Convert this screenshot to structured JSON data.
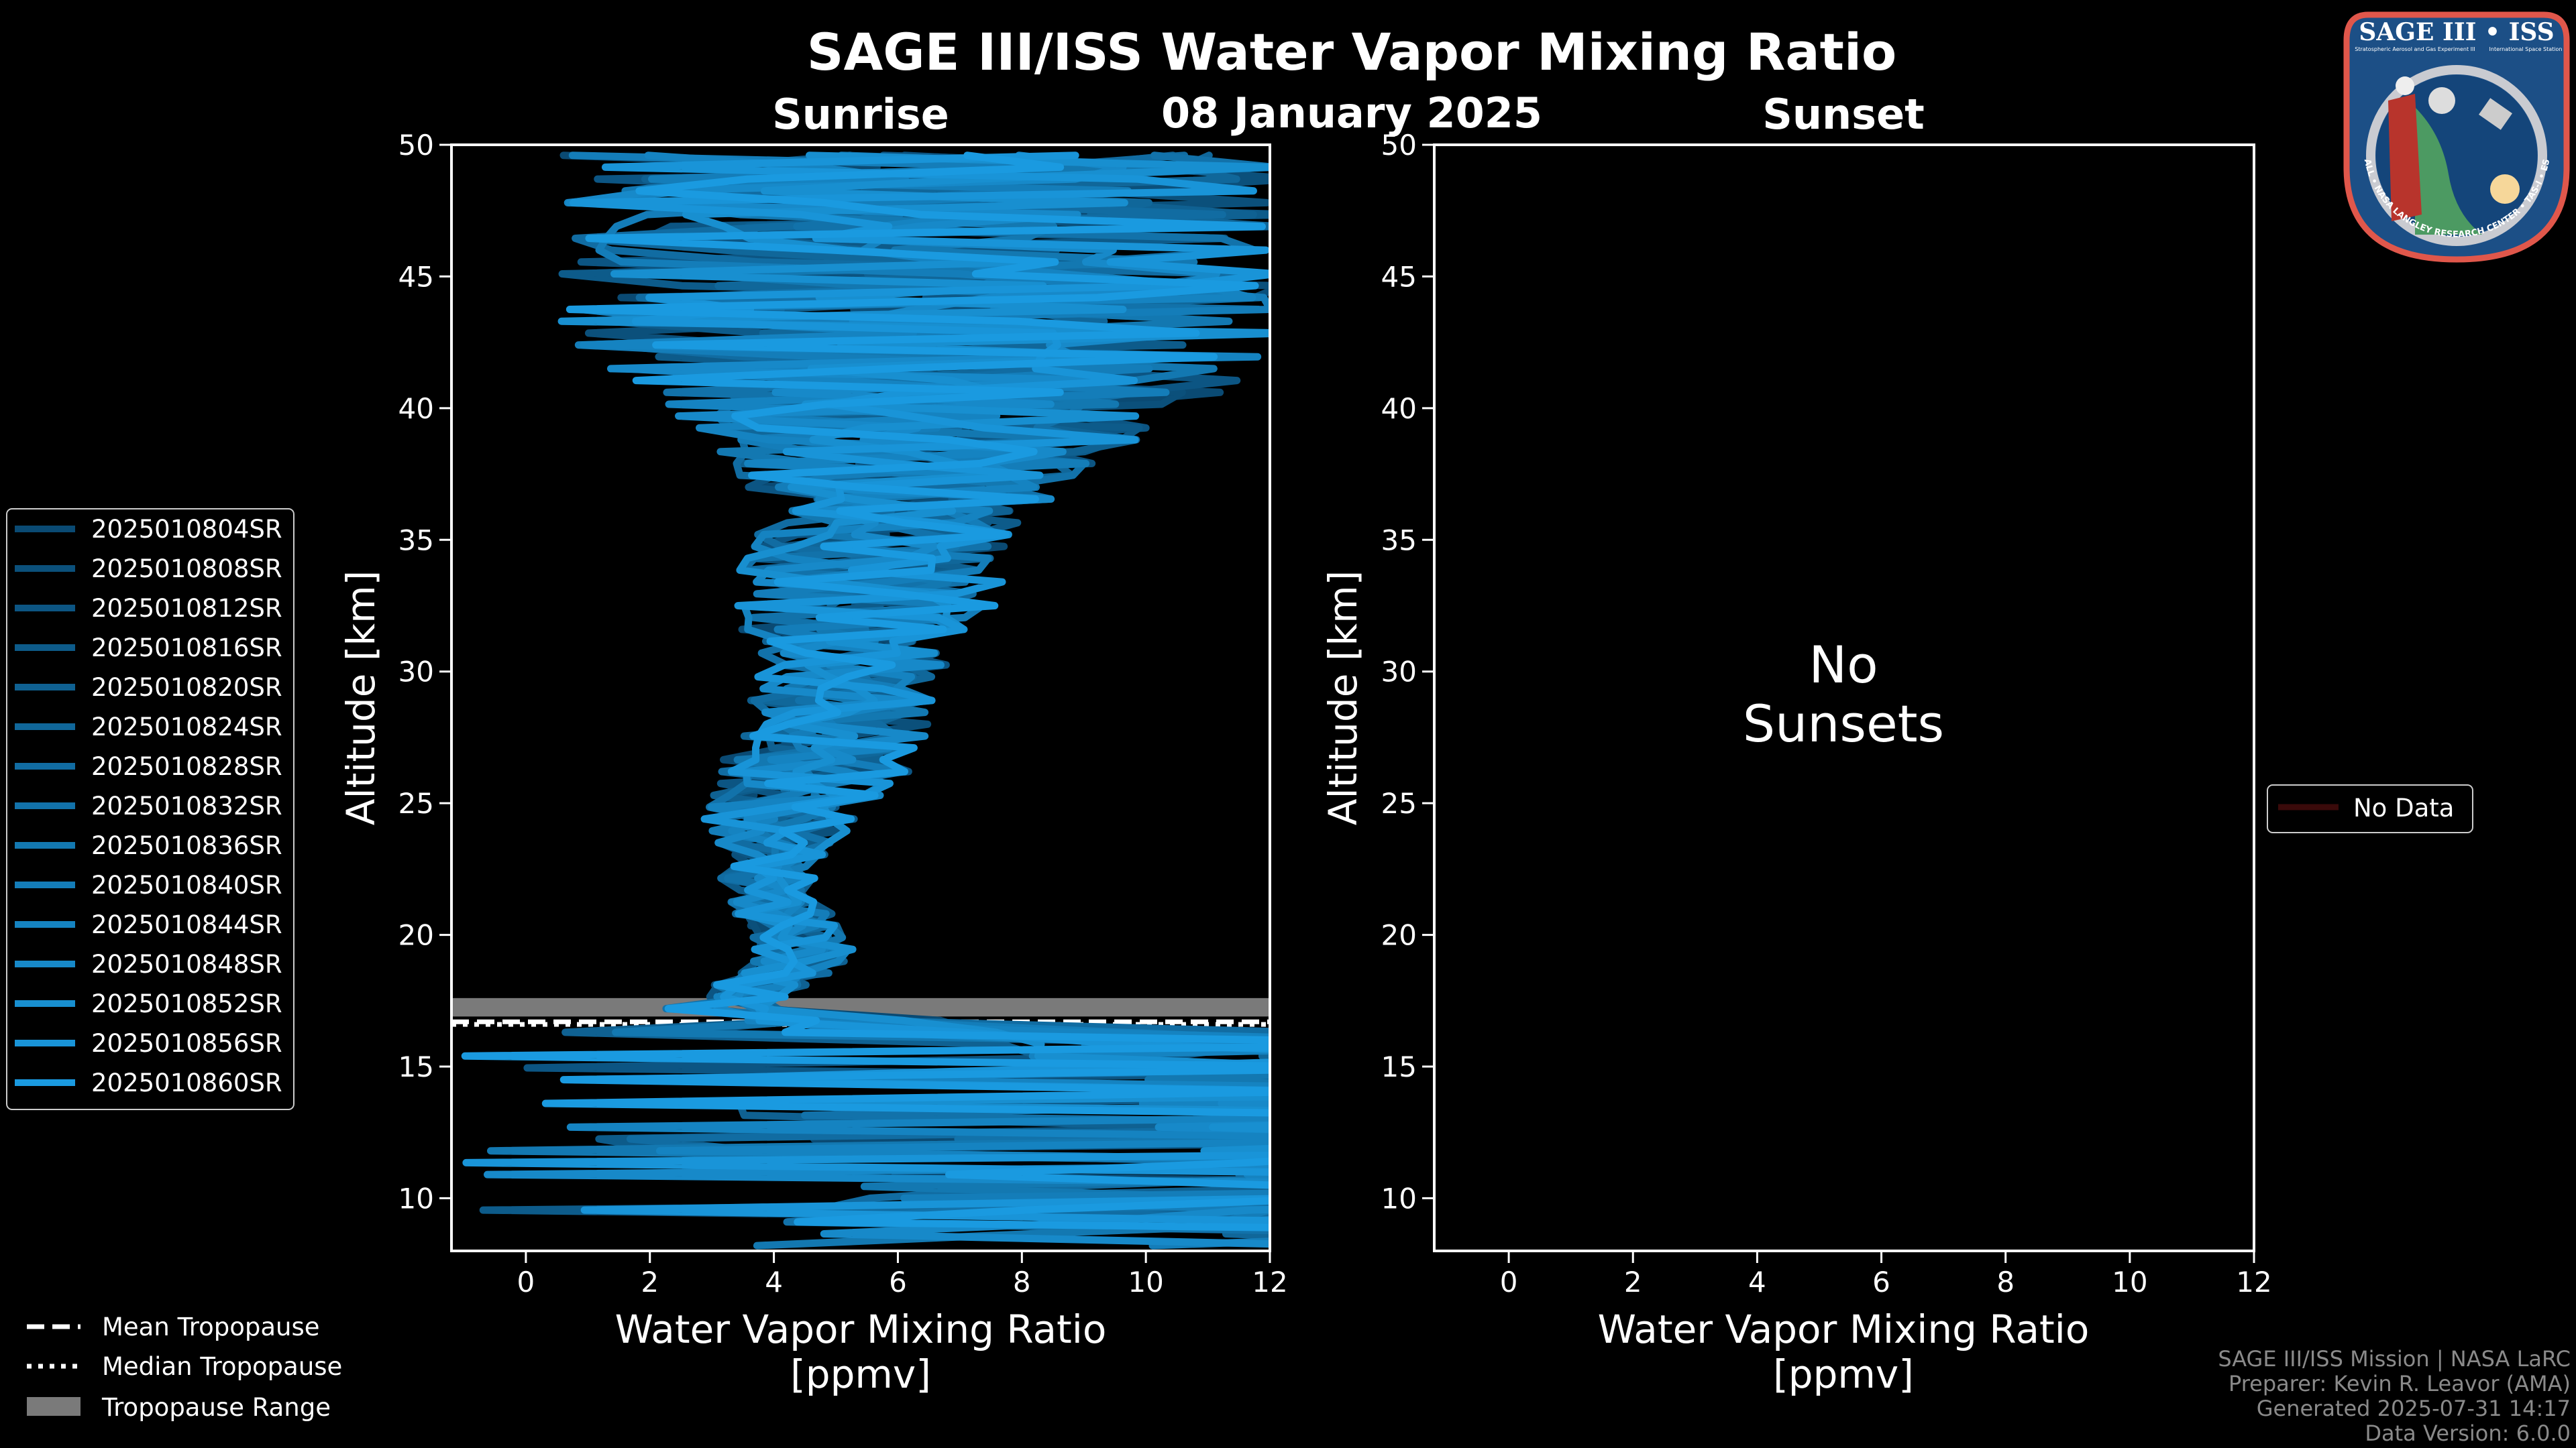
{
  "chart_data": [
    {
      "type": "line",
      "panel": "Sunrise",
      "title": "SAGE III/ISS Water Vapor Mixing Ratio",
      "subtitle": "08 January 2025",
      "panel_title": "Sunrise",
      "xlabel": "Water Vapor Mixing Ratio",
      "xlabel_units": "[ppmv]",
      "ylabel": "Altitude [km]",
      "xlim": [
        -1.2,
        12
      ],
      "ylim": [
        8,
        50
      ],
      "xticks": [
        0,
        2,
        4,
        6,
        8,
        10,
        12
      ],
      "yticks": [
        10,
        15,
        20,
        25,
        30,
        35,
        40,
        45,
        50
      ],
      "grid": false,
      "legend_position": "left",
      "color_range": [
        "#0a4a73",
        "#1a9ae0"
      ],
      "series_names": [
        "2025010804SR",
        "2025010808SR",
        "2025010812SR",
        "2025010816SR",
        "2025010820SR",
        "2025010824SR",
        "2025010828SR",
        "2025010832SR",
        "2025010836SR",
        "2025010840SR",
        "2025010844SR",
        "2025010848SR",
        "2025010852SR",
        "2025010856SR",
        "2025010860SR"
      ],
      "approx_profile": {
        "altitude_km": [
          8,
          10,
          12,
          14,
          16,
          17,
          18,
          19,
          20,
          22,
          24,
          26,
          28,
          30,
          32,
          34,
          36,
          38,
          40,
          42,
          45,
          50
        ],
        "mean_ppmv": [
          16,
          16,
          16,
          15,
          12,
          3.0,
          3.8,
          4.5,
          4.4,
          3.9,
          4.0,
          4.6,
          5.0,
          5.2,
          5.5,
          5.6,
          6.0,
          6.3,
          6.5,
          6.5,
          6.5,
          6.5
        ],
        "spread_ppmv": [
          4,
          4,
          4,
          4,
          4,
          0.8,
          0.7,
          0.7,
          0.7,
          0.7,
          1.0,
          1.3,
          1.3,
          1.3,
          1.8,
          1.8,
          1.8,
          2.5,
          3.5,
          5,
          5,
          5
        ]
      },
      "tropopause": {
        "mean_km": 16.7,
        "median_km": 16.6,
        "range_km": [
          16.9,
          17.6
        ],
        "range_color": "#7a7a7a"
      }
    },
    {
      "type": "line",
      "panel": "Sunset",
      "panel_title": "Sunset",
      "xlabel": "Water Vapor Mixing Ratio",
      "xlabel_units": "[ppmv]",
      "ylabel": "Altitude [km]",
      "xlim": [
        -1.2,
        12
      ],
      "ylim": [
        8,
        50
      ],
      "xticks": [
        0,
        2,
        4,
        6,
        8,
        10,
        12
      ],
      "yticks": [
        10,
        15,
        20,
        25,
        30,
        35,
        40,
        45,
        50
      ],
      "message_line1": "No",
      "message_line2": "Sunsets",
      "legend": [
        "No Data"
      ],
      "legend_color": "#3a0a0a",
      "series": []
    }
  ],
  "shared_legend": {
    "mean": "Mean Tropopause",
    "median": "Median Tropopause",
    "range": "Tropopause Range"
  },
  "footer": {
    "line1": "SAGE III/ISS Mission | NASA LaRC",
    "line2": "Preparer: Kevin R. Leavor (AMA)",
    "line3": "Generated 2025-07-31 14:17",
    "line4": "Data Version: 6.0.0"
  },
  "logo": {
    "title": "SAGE III • ISS",
    "left_caption": "Stratospheric Aerosol and Gas Experiment III",
    "right_caption": "International Space Station",
    "ring_text": "BALL • NASA LANGLEY RESEARCH CENTER • TAS-I • ESA"
  }
}
